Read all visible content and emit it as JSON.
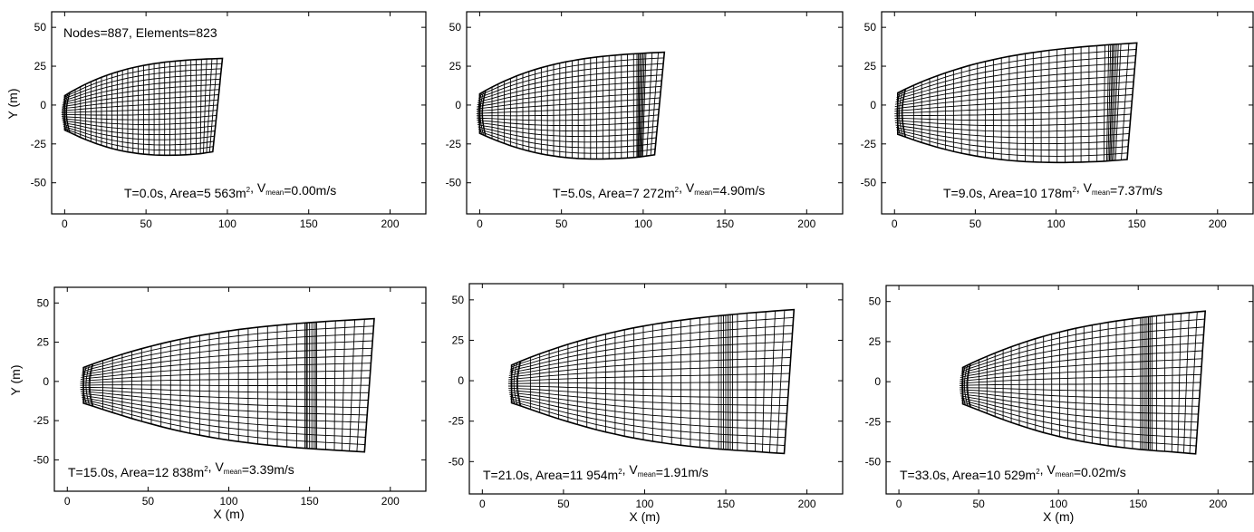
{
  "figure": {
    "panels": [
      {
        "id": "p1",
        "ann_parts": [
          {
            "t": "T=0.0s, Area=5 563m"
          },
          {
            "t": "2",
            "sup": true
          },
          {
            "t": ", V"
          },
          {
            "t": "mean",
            "sub": true
          },
          {
            "t": "=0.00m/s"
          }
        ],
        "extra_text": "Nodes=887, Elements=823",
        "ylabel": "Y (m)",
        "xlabel": "",
        "mesh": {
          "x0": 0,
          "x1": 97,
          "y_bottom_left": -22,
          "y_top_left": 12,
          "y_top_right": 30,
          "y_bottom_right": -30,
          "bulge_x": null
        }
      },
      {
        "id": "p2",
        "ann_parts": [
          {
            "t": "T=5.0s, Area=7 272m"
          },
          {
            "t": "2",
            "sup": true
          },
          {
            "t": ", V"
          },
          {
            "t": "mean",
            "sub": true
          },
          {
            "t": "=4.90m/s"
          }
        ],
        "extra_text": "",
        "ylabel": "",
        "xlabel": "",
        "mesh": {
          "x0": 0,
          "x1": 113,
          "y_bottom_left": -25,
          "y_top_left": 14,
          "y_top_right": 34,
          "y_bottom_right": -32,
          "bulge_x": 98
        }
      },
      {
        "id": "p3",
        "ann_parts": [
          {
            "t": "T=9.0s, Area=10 178m"
          },
          {
            "t": "2",
            "sup": true
          },
          {
            "t": ", V"
          },
          {
            "t": "mean",
            "sub": true
          },
          {
            "t": "=7.37m/s"
          }
        ],
        "extra_text": "",
        "ylabel": "",
        "xlabel": "",
        "mesh": {
          "x0": 2,
          "x1": 150,
          "y_bottom_left": -26,
          "y_top_left": 15,
          "y_top_right": 40,
          "y_bottom_right": -35,
          "bulge_x": 135
        }
      },
      {
        "id": "p4",
        "ann_parts": [
          {
            "t": "T=15.0s, Area=12 838m"
          },
          {
            "t": "2",
            "sup": true
          },
          {
            "t": ", V"
          },
          {
            "t": "mean",
            "sub": true
          },
          {
            "t": "=3.39m/s"
          }
        ],
        "extra_text": "",
        "ylabel": "Y (m)",
        "xlabel": "X (m)",
        "mesh": {
          "x0": 10,
          "x1": 190,
          "y_bottom_left": -20,
          "y_top_left": 15,
          "y_top_right": 40,
          "y_bottom_right": -45,
          "bulge_x": 150
        }
      },
      {
        "id": "p5",
        "ann_parts": [
          {
            "t": "T=21.0s, Area=11 954m"
          },
          {
            "t": "2",
            "sup": true
          },
          {
            "t": ", V"
          },
          {
            "t": "mean",
            "sub": true
          },
          {
            "t": "=1.91m/s"
          }
        ],
        "extra_text": "",
        "ylabel": "",
        "xlabel": "X (m)",
        "mesh": {
          "x0": 18,
          "x1": 192,
          "y_bottom_left": -20,
          "y_top_left": 16,
          "y_top_right": 44,
          "y_bottom_right": -45,
          "bulge_x": 150
        }
      },
      {
        "id": "p6",
        "ann_parts": [
          {
            "t": "T=33.0s, Area=10 529m"
          },
          {
            "t": "2",
            "sup": true
          },
          {
            "t": ", V"
          },
          {
            "t": "mean",
            "sub": true
          },
          {
            "t": "=0.02m/s"
          }
        ],
        "extra_text": "",
        "ylabel": "",
        "xlabel": "X (m)",
        "mesh": {
          "x0": 40,
          "x1": 192,
          "y_bottom_left": -20,
          "y_top_left": 15,
          "y_top_right": 44,
          "y_bottom_right": -45,
          "bulge_x": 155
        }
      }
    ],
    "axis": {
      "xlim": [
        -8,
        222
      ],
      "ylim": [
        -70,
        60
      ],
      "xticks": [
        0,
        50,
        100,
        150,
        200
      ],
      "yticks": [
        50,
        25,
        0,
        -25,
        -50
      ]
    }
  }
}
